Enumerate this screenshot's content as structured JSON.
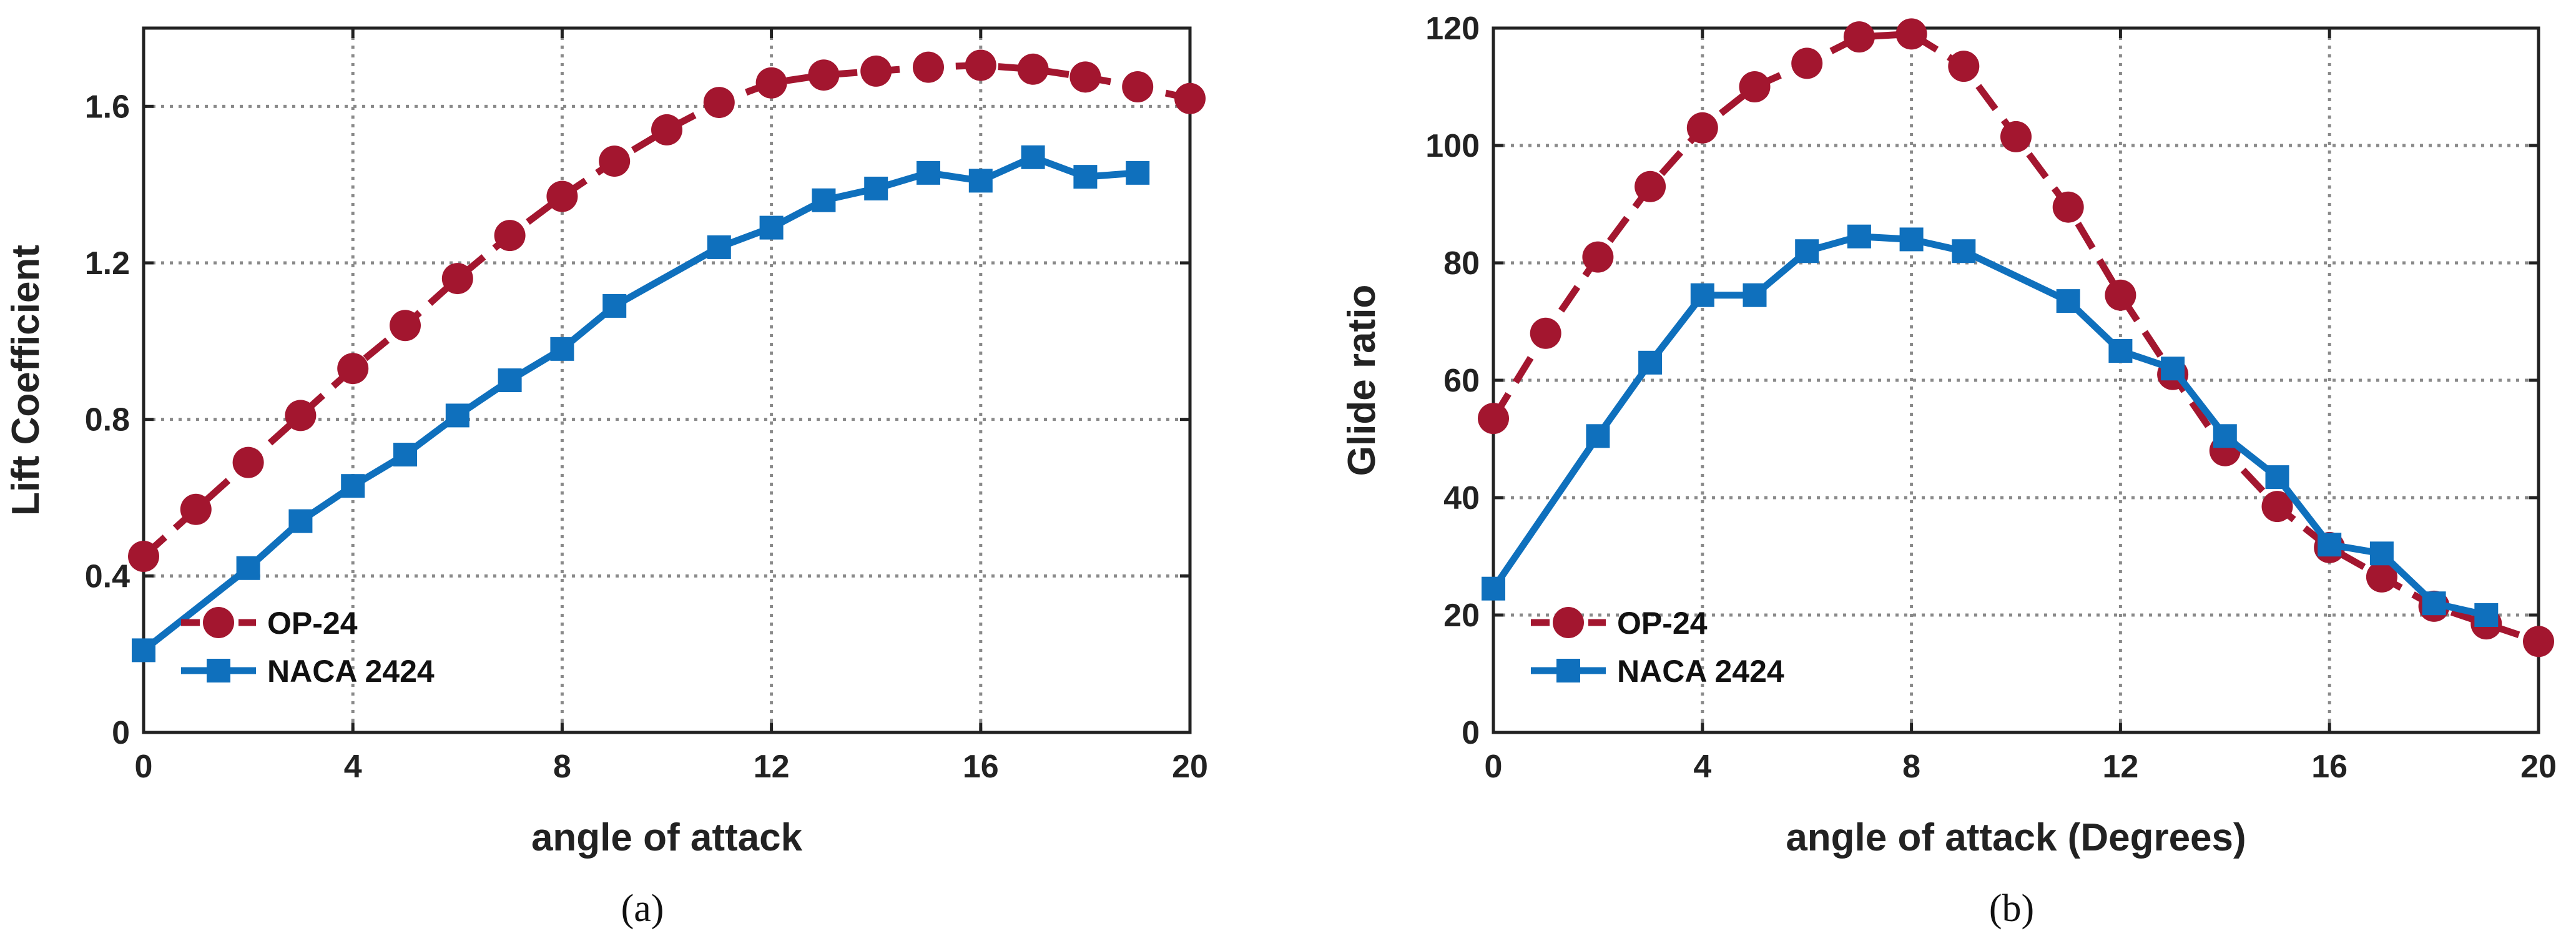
{
  "chart_data": [
    {
      "type": "line",
      "caption": "(a)",
      "xlabel": "angle of attack",
      "ylabel": "Lift Coefficient",
      "xlim": [
        0,
        20
      ],
      "ylim": [
        0,
        1.8
      ],
      "xticks": [
        0,
        4,
        8,
        12,
        16,
        20
      ],
      "xtick_labels": [
        "0",
        "4",
        "8",
        "12",
        "16",
        "20"
      ],
      "yticks": [
        0,
        0.4,
        0.8,
        1.2,
        1.6
      ],
      "ytick_labels": [
        "0",
        "0.4",
        "0.8",
        "1.2",
        "1.6"
      ],
      "grid": true,
      "legend_position": "bottom-left",
      "series": [
        {
          "name": "OP-24",
          "color": "#a3162f",
          "marker": "circle",
          "line": "dashed",
          "x": [
            0,
            1,
            2,
            3,
            4,
            5,
            6,
            7,
            8,
            9,
            10,
            11,
            12,
            13,
            14,
            15,
            16,
            17,
            18,
            19,
            20
          ],
          "y": [
            0.45,
            0.57,
            0.69,
            0.81,
            0.93,
            1.04,
            1.16,
            1.27,
            1.37,
            1.46,
            1.54,
            1.61,
            1.66,
            1.68,
            1.69,
            1.7,
            1.705,
            1.695,
            1.675,
            1.65,
            1.62
          ]
        },
        {
          "name": "NACA 2424",
          "color": "#0f70bd",
          "marker": "square",
          "line": "solid",
          "x": [
            0,
            2,
            3,
            4,
            5,
            6,
            7,
            8,
            9,
            11,
            12,
            13,
            14,
            15,
            16,
            17,
            18,
            19
          ],
          "y": [
            0.21,
            0.42,
            0.54,
            0.63,
            0.71,
            0.81,
            0.9,
            0.98,
            1.09,
            1.24,
            1.29,
            1.36,
            1.39,
            1.43,
            1.41,
            1.47,
            1.42,
            1.43
          ]
        }
      ]
    },
    {
      "type": "line",
      "caption": "(b)",
      "xlabel": "angle of attack (Degrees)",
      "ylabel": "Glide ratio",
      "xlim": [
        0,
        20
      ],
      "ylim": [
        0,
        120
      ],
      "xticks": [
        0,
        4,
        8,
        12,
        16,
        20
      ],
      "xtick_labels": [
        "0",
        "4",
        "8",
        "12",
        "16",
        "20"
      ],
      "yticks": [
        0,
        20,
        40,
        60,
        80,
        100,
        120
      ],
      "ytick_labels": [
        "0",
        "20",
        "40",
        "60",
        "80",
        "100",
        "120"
      ],
      "grid": true,
      "legend_position": "bottom-left",
      "series": [
        {
          "name": "OP-24",
          "color": "#a3162f",
          "marker": "circle",
          "line": "dashed",
          "x": [
            0,
            1,
            2,
            3,
            4,
            5,
            6,
            7,
            8,
            9,
            10,
            11,
            12,
            13,
            14,
            15,
            16,
            17,
            18,
            19,
            20
          ],
          "y": [
            53.5,
            68,
            81,
            93,
            103,
            110,
            114,
            118.5,
            119,
            113.5,
            101.5,
            89.5,
            74.5,
            61,
            48,
            38.5,
            31.5,
            26.5,
            21.5,
            18.5,
            15.5
          ]
        },
        {
          "name": "NACA 2424",
          "color": "#0f70bd",
          "marker": "square",
          "line": "solid",
          "x": [
            0,
            2,
            3,
            4,
            5,
            6,
            7,
            8,
            9,
            11,
            12,
            13,
            14,
            15,
            16,
            17,
            18,
            19
          ],
          "y": [
            24.5,
            50.5,
            63,
            74.5,
            74.5,
            82,
            84.5,
            84,
            82,
            73.5,
            65,
            62,
            50.5,
            43.5,
            32,
            30.5,
            22,
            20
          ]
        }
      ]
    }
  ]
}
